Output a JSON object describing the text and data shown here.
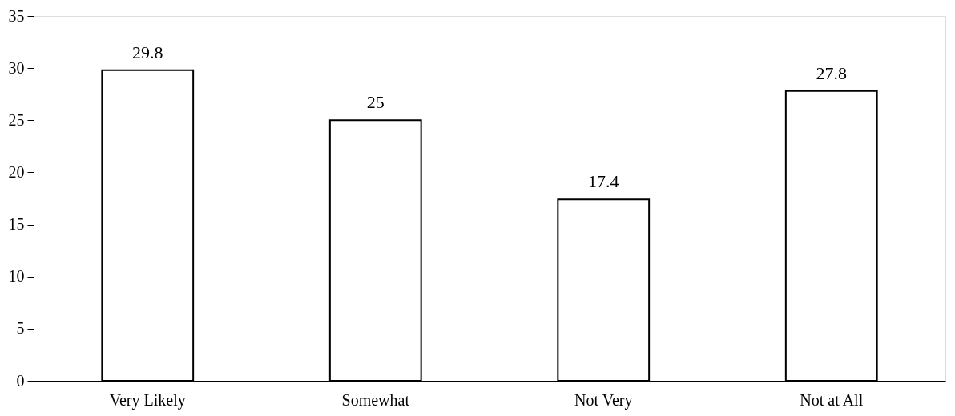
{
  "chart_data": {
    "type": "bar",
    "categories": [
      "Very Likely",
      "Somewhat",
      "Not Very",
      "Not at All"
    ],
    "values": [
      29.8,
      25,
      17.4,
      27.8
    ],
    "color": "#ffffff",
    "ylim": [
      0,
      35
    ],
    "yticks": [
      0,
      5,
      10,
      15,
      20,
      25,
      30,
      35
    ],
    "grid": false,
    "data_labels": true
  }
}
